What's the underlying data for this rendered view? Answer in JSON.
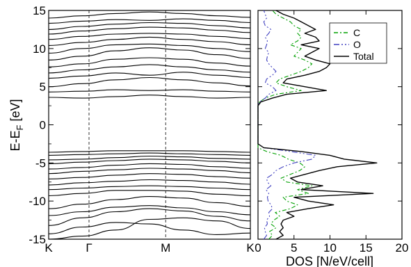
{
  "chart_data": [
    {
      "type": "line",
      "panel": "band-structure",
      "ylabel": "E-E",
      "ylabel_subscript": "F",
      "ylabel_unit": "[eV]",
      "ylim": [
        -15,
        15
      ],
      "yticks": [
        -15,
        -10,
        -5,
        0,
        5,
        10,
        15
      ],
      "ytick_labels": [
        "-15",
        "-10",
        "-5",
        "0",
        "5",
        "10",
        "15"
      ],
      "kpath": [
        {
          "label": "K",
          "x": 0.0
        },
        {
          "label": "Γ",
          "x": 0.2
        },
        {
          "label": "M",
          "x": 0.58
        },
        {
          "label": "K",
          "x": 1.0
        }
      ],
      "symmetry_lines_dashed": [
        "Γ",
        "M"
      ],
      "line_color": "#000000",
      "bands": [
        {
          "name": "",
          "values": [
            -15.0,
            -14.6,
            -13.8,
            -12.4,
            -12.2,
            -12.6,
            -13.6
          ]
        },
        {
          "name": "",
          "values": [
            -14.3,
            -13.4,
            -12.8,
            -13.0,
            -13.8,
            -14.4,
            -14.2
          ]
        },
        {
          "name": "",
          "values": [
            -13.2,
            -12.2,
            -11.4,
            -11.0,
            -11.3,
            -12.0,
            -12.6
          ]
        },
        {
          "name": "",
          "values": [
            -11.9,
            -11.4,
            -10.8,
            -10.6,
            -10.9,
            -11.4,
            -11.8
          ]
        },
        {
          "name": "",
          "values": [
            -11.0,
            -10.4,
            -9.8,
            -9.4,
            -9.6,
            -10.2,
            -10.7
          ]
        },
        {
          "name": "",
          "values": [
            -9.3,
            -9.0,
            -8.6,
            -8.6,
            -8.7,
            -9.1,
            -9.3
          ]
        },
        {
          "name": "",
          "values": [
            -8.5,
            -8.3,
            -8.1,
            -8.0,
            -8.1,
            -8.3,
            -8.5
          ]
        },
        {
          "name": "",
          "values": [
            -7.9,
            -7.6,
            -7.4,
            -7.2,
            -7.3,
            -7.5,
            -7.8
          ]
        },
        {
          "name": "",
          "values": [
            -7.1,
            -6.9,
            -6.6,
            -6.4,
            -6.5,
            -6.8,
            -7.0
          ]
        },
        {
          "name": "",
          "values": [
            -6.4,
            -6.1,
            -5.9,
            -5.7,
            -5.8,
            -6.0,
            -6.3
          ]
        },
        {
          "name": "",
          "values": [
            -5.8,
            -5.6,
            -5.3,
            -5.1,
            -5.2,
            -5.5,
            -5.7
          ]
        },
        {
          "name": "",
          "values": [
            -5.1,
            -4.9,
            -4.7,
            -4.5,
            -4.6,
            -4.8,
            -5.0
          ]
        },
        {
          "name": "",
          "values": [
            -4.6,
            -4.5,
            -4.3,
            -4.1,
            -4.2,
            -4.4,
            -4.5
          ]
        },
        {
          "name": "",
          "values": [
            -4.0,
            -3.9,
            -3.8,
            -3.7,
            -3.8,
            -3.9,
            -4.0
          ]
        },
        {
          "name": "",
          "values": [
            -3.6,
            -3.5,
            -3.4,
            -3.4,
            -3.4,
            -3.5,
            -3.6
          ]
        },
        {
          "name": "",
          "values": [
            3.6,
            3.5,
            3.7,
            3.9,
            3.7,
            3.5,
            3.6
          ]
        },
        {
          "name": "",
          "values": [
            4.3,
            4.4,
            4.6,
            4.5,
            4.6,
            4.4,
            4.3
          ]
        },
        {
          "name": "",
          "values": [
            5.0,
            5.4,
            5.9,
            6.2,
            5.9,
            5.5,
            5.1
          ]
        },
        {
          "name": "",
          "values": [
            6.1,
            6.4,
            6.8,
            6.5,
            6.9,
            6.5,
            6.2
          ]
        },
        {
          "name": "",
          "values": [
            6.8,
            7.2,
            7.6,
            7.9,
            7.6,
            7.2,
            6.9
          ]
        },
        {
          "name": "",
          "values": [
            7.6,
            8.0,
            8.6,
            8.8,
            8.6,
            8.1,
            7.7
          ]
        },
        {
          "name": "",
          "values": [
            8.5,
            9.0,
            9.7,
            10.1,
            9.8,
            9.2,
            8.7
          ]
        },
        {
          "name": "",
          "values": [
            9.4,
            10.0,
            10.5,
            10.6,
            10.4,
            10.0,
            9.6
          ]
        },
        {
          "name": "",
          "values": [
            10.4,
            10.8,
            11.2,
            11.5,
            11.2,
            10.9,
            10.5
          ]
        },
        {
          "name": "",
          "values": [
            11.2,
            11.6,
            11.9,
            12.0,
            11.9,
            11.6,
            11.3
          ]
        },
        {
          "name": "",
          "values": [
            11.9,
            12.3,
            12.6,
            12.8,
            12.7,
            12.4,
            12.1
          ]
        },
        {
          "name": "",
          "values": [
            12.5,
            12.9,
            13.2,
            13.4,
            13.3,
            13.0,
            12.7
          ]
        },
        {
          "name": "",
          "values": [
            13.3,
            13.6,
            13.8,
            13.7,
            13.9,
            13.7,
            13.4
          ]
        },
        {
          "name": "",
          "values": [
            14.0,
            14.3,
            14.6,
            14.8,
            14.6,
            14.3,
            14.1
          ]
        }
      ]
    },
    {
      "type": "line",
      "panel": "dos",
      "xlabel": "DOS [N/eV/cell]",
      "xlim": [
        0,
        20
      ],
      "xticks": [
        0,
        5,
        10,
        15,
        20
      ],
      "xtick_labels": [
        "0",
        "5",
        "10",
        "15",
        "20"
      ],
      "ylim": [
        -15,
        15
      ],
      "legend_position": "top-right",
      "energy": [
        -15,
        -14.5,
        -14,
        -13.5,
        -13,
        -12.5,
        -12,
        -11.5,
        -11,
        -10.5,
        -10,
        -9.5,
        -9,
        -8.5,
        -8,
        -7.5,
        -7,
        -6.5,
        -6,
        -5.5,
        -5,
        -4.5,
        -4,
        -3.5,
        -3,
        -2.5,
        -2,
        -1.5,
        -1,
        -0.5,
        0,
        0.5,
        1,
        1.5,
        2,
        2.5,
        3,
        3.5,
        4,
        4.5,
        5,
        5.5,
        6,
        6.5,
        7,
        7.5,
        8,
        8.5,
        9,
        9.5,
        10,
        10.5,
        11,
        11.5,
        12,
        12.5,
        13,
        13.5,
        14,
        14.5,
        15
      ],
      "series": [
        {
          "name": "C",
          "color": "#00a000",
          "dash": "6 3 2 3",
          "values": [
            1.5,
            2.0,
            1.6,
            2.5,
            1.8,
            2.2,
            3.0,
            2.4,
            4.5,
            5.5,
            4.0,
            3.5,
            7.0,
            5.5,
            7.5,
            4.0,
            3.2,
            4.5,
            5.8,
            6.5,
            5.8,
            4.2,
            3.2,
            1.2,
            0.0,
            0.0,
            0.0,
            0.0,
            0.0,
            0.0,
            0.0,
            0.0,
            0.0,
            0.0,
            0.0,
            0.0,
            0.2,
            1.0,
            2.5,
            6.0,
            4.0,
            2.5,
            3.0,
            4.5,
            6.0,
            7.0,
            7.5,
            6.5,
            5.0,
            5.5,
            6.0,
            4.5,
            5.5,
            6.0,
            5.5,
            6.0,
            5.0,
            4.5,
            3.5,
            2.5,
            2.0
          ]
        },
        {
          "name": "O",
          "color": "#4040c0",
          "dash": "8 3 2 3 2 3",
          "values": [
            0.8,
            1.2,
            1.0,
            0.9,
            1.3,
            1.2,
            1.6,
            1.5,
            2.0,
            1.8,
            1.4,
            1.3,
            1.5,
            1.1,
            1.8,
            1.3,
            1.2,
            2.0,
            2.5,
            3.5,
            5.0,
            7.5,
            8.0,
            4.5,
            0.8,
            0.0,
            0.0,
            0.0,
            0.0,
            0.0,
            0.0,
            0.0,
            0.0,
            0.0,
            0.0,
            0.0,
            0.2,
            1.0,
            1.5,
            2.5,
            2.0,
            1.0,
            1.2,
            2.0,
            2.5,
            2.0,
            1.5,
            1.2,
            1.3,
            1.5,
            1.0,
            1.2,
            1.3,
            1.0,
            1.5,
            1.8,
            1.0,
            0.8,
            1.2,
            1.0,
            0.8
          ]
        },
        {
          "name": "Total",
          "color": "#000000",
          "dash": "",
          "values": [
            2.5,
            3.5,
            3.0,
            3.5,
            3.2,
            3.5,
            5.0,
            4.0,
            7.0,
            10.5,
            7.0,
            5.0,
            16.0,
            6.0,
            9.0,
            5.5,
            4.5,
            6.5,
            8.5,
            11.0,
            16.5,
            12.0,
            10.0,
            6.0,
            0.8,
            0.0,
            0.0,
            0.0,
            0.0,
            0.0,
            0.0,
            0.0,
            0.0,
            0.0,
            0.0,
            0.0,
            0.4,
            2.0,
            4.0,
            9.5,
            6.5,
            3.5,
            4.0,
            6.5,
            8.5,
            9.5,
            10.0,
            8.0,
            6.5,
            7.5,
            8.5,
            6.0,
            8.5,
            8.0,
            6.5,
            8.0,
            7.0,
            6.0,
            5.0,
            3.5,
            2.5
          ]
        }
      ]
    }
  ]
}
